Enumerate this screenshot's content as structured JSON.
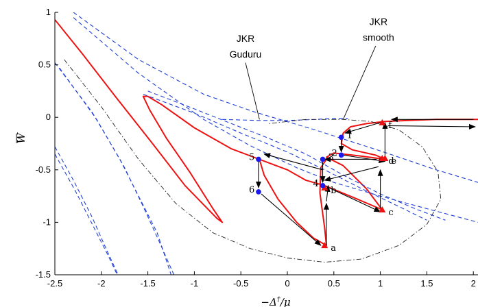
{
  "chart_data": {
    "type": "line",
    "title": "",
    "xlabel": "−Δ",
    "xlabel_sup": "†",
    "xlabel_tail": "/μ",
    "ylabel": "W",
    "xlim": [
      -2.5,
      2.05
    ],
    "ylim": [
      -1.5,
      1
    ],
    "x_ticks": [
      -2.5,
      -2,
      -1.5,
      -1,
      -0.5,
      0,
      0.5,
      1,
      1.5,
      2
    ],
    "x_tick_labels": [
      "-2.5",
      "-2",
      "-1.5",
      "-1",
      "-0.5",
      "0",
      "0.5",
      "1",
      "1.5",
      "2"
    ],
    "y_ticks": [
      1,
      0.5,
      0,
      -0.5,
      -1,
      -1.5
    ],
    "y_tick_labels": [
      "1",
      "0.5",
      "0",
      "-0.5",
      "-1",
      "-1.5"
    ],
    "grid": false,
    "colors": {
      "main_curve": "#ee1111",
      "dashed_curves": "#1f3fd6",
      "envelope": "#222222",
      "points": "#1a1aee",
      "markers": "#ee1111",
      "arrows": "#000000"
    },
    "series": [
      {
        "style": "solid-red",
        "points": [
          [
            -2.5,
            0.93
          ],
          [
            -2.2,
            0.6
          ],
          [
            -1.85,
            0.2
          ],
          [
            -1.45,
            -0.25
          ],
          [
            -1.1,
            -0.65
          ],
          [
            -0.76,
            -0.96
          ],
          [
            -0.7,
            -1.0
          ],
          [
            -0.8,
            -0.87
          ],
          [
            -1.05,
            -0.52
          ],
          [
            -1.3,
            -0.2
          ],
          [
            -1.48,
            0.07
          ],
          [
            -1.55,
            0.2
          ],
          [
            -1.5,
            0.2
          ],
          [
            -1.35,
            0.12
          ],
          [
            -1.0,
            -0.1
          ],
          [
            -0.6,
            -0.3
          ],
          [
            -0.3,
            -0.4
          ],
          [
            0.0,
            -0.5
          ],
          [
            0.2,
            -0.6
          ],
          [
            0.4,
            -0.65
          ],
          [
            0.7,
            -0.76
          ],
          [
            1.02,
            -0.88
          ],
          [
            0.85,
            -0.68
          ],
          [
            0.6,
            -0.46
          ],
          [
            0.42,
            -0.38
          ],
          [
            0.5,
            -0.34
          ],
          [
            0.6,
            -0.35
          ],
          [
            0.8,
            -0.37
          ],
          [
            1.05,
            -0.4
          ],
          [
            0.95,
            -0.36
          ],
          [
            0.7,
            -0.31
          ],
          [
            0.58,
            -0.25
          ],
          [
            0.6,
            -0.15
          ],
          [
            0.68,
            -0.09
          ],
          [
            0.85,
            -0.06
          ],
          [
            1.05,
            -0.04
          ],
          [
            1.3,
            -0.03
          ],
          [
            1.6,
            -0.02
          ],
          [
            2.05,
            -0.02
          ]
        ]
      },
      {
        "style": "solid-red",
        "points": [
          [
            -0.3,
            -0.4
          ],
          [
            -0.25,
            -0.55
          ],
          [
            -0.1,
            -0.78
          ],
          [
            0.1,
            -1.0
          ],
          [
            0.28,
            -1.15
          ],
          [
            0.42,
            -1.22
          ],
          [
            0.4,
            -1.05
          ],
          [
            0.35,
            -0.72
          ],
          [
            0.36,
            -0.48
          ],
          [
            0.42,
            -0.4
          ]
        ]
      },
      {
        "style": "dashed-blue",
        "points": [
          [
            -2.3,
            1.0
          ],
          [
            -1.6,
            0.55
          ],
          [
            -0.9,
            0.22
          ],
          [
            -0.35,
            0.05
          ],
          [
            0.3,
            -0.12
          ],
          [
            1.0,
            -0.32
          ],
          [
            1.6,
            -0.5
          ],
          [
            2.05,
            -0.62
          ]
        ]
      },
      {
        "style": "dashed-blue",
        "points": [
          [
            -2.3,
            0.95
          ],
          [
            -1.6,
            0.42
          ],
          [
            -0.9,
            -0.02
          ],
          [
            -0.4,
            -0.27
          ],
          [
            0.1,
            -0.48
          ],
          [
            0.5,
            -0.62
          ],
          [
            1.0,
            -0.75
          ],
          [
            1.5,
            -0.87
          ],
          [
            2.05,
            -1.0
          ]
        ]
      },
      {
        "style": "dashed-blue",
        "points": [
          [
            -1.5,
            0.25
          ],
          [
            -1.0,
            0.08
          ],
          [
            -0.6,
            -0.06
          ],
          [
            -0.2,
            -0.2
          ],
          [
            0.2,
            -0.35
          ],
          [
            0.6,
            -0.55
          ],
          [
            1.0,
            -0.73
          ],
          [
            1.4,
            -0.88
          ],
          [
            1.7,
            -0.98
          ]
        ]
      },
      {
        "style": "dashed-blue",
        "points": [
          [
            -1.55,
            0.22
          ],
          [
            -1.0,
            0.04
          ],
          [
            -0.5,
            -0.15
          ],
          [
            0.0,
            -0.33
          ],
          [
            0.4,
            -0.5
          ],
          [
            0.8,
            -0.68
          ],
          [
            1.2,
            -0.85
          ],
          [
            1.5,
            -0.98
          ]
        ]
      },
      {
        "style": "dashed-blue",
        "points": [
          [
            -0.7,
            -0.02
          ],
          [
            -0.3,
            -0.03
          ],
          [
            0.0,
            -0.03
          ],
          [
            0.3,
            -0.02
          ],
          [
            0.5,
            -0.01
          ],
          [
            0.65,
            -0.01
          ]
        ]
      },
      {
        "style": "dashed-blue",
        "points": [
          [
            -2.5,
            0.52
          ],
          [
            -2.1,
            0.05
          ],
          [
            -1.8,
            -0.4
          ],
          [
            -1.6,
            -0.75
          ],
          [
            -1.4,
            -1.1
          ],
          [
            -1.25,
            -1.5
          ]
        ]
      },
      {
        "style": "dashed-blue",
        "points": [
          [
            -2.45,
            0.47
          ],
          [
            -2.05,
            -0.02
          ],
          [
            -1.75,
            -0.48
          ],
          [
            -1.55,
            -0.85
          ],
          [
            -1.38,
            -1.18
          ],
          [
            -1.22,
            -1.5
          ]
        ]
      },
      {
        "style": "dashed-blue",
        "points": [
          [
            -2.5,
            -0.28
          ],
          [
            -2.3,
            -0.6
          ],
          [
            -2.1,
            -0.95
          ],
          [
            -1.95,
            -1.25
          ],
          [
            -1.82,
            -1.5
          ]
        ]
      },
      {
        "style": "dashed-blue",
        "points": [
          [
            -2.5,
            -0.35
          ],
          [
            -2.28,
            -0.7
          ],
          [
            -2.08,
            -1.05
          ],
          [
            -1.92,
            -1.33
          ],
          [
            -1.83,
            -1.5
          ]
        ]
      },
      {
        "style": "dashdot-black",
        "points": [
          [
            -2.4,
            0.55
          ],
          [
            -2.0,
            0.1
          ],
          [
            -1.6,
            -0.4
          ],
          [
            -1.2,
            -0.82
          ],
          [
            -0.8,
            -1.1
          ],
          [
            -0.4,
            -1.25
          ],
          [
            0.0,
            -1.34
          ],
          [
            0.4,
            -1.38
          ],
          [
            0.8,
            -1.35
          ],
          [
            1.2,
            -1.22
          ],
          [
            1.5,
            -1.02
          ],
          [
            1.65,
            -0.78
          ],
          [
            1.62,
            -0.52
          ],
          [
            1.45,
            -0.28
          ],
          [
            1.2,
            -0.12
          ],
          [
            0.9,
            -0.04
          ],
          [
            0.6,
            -0.02
          ],
          [
            0.2,
            -0.02
          ],
          [
            -0.2,
            -0.06
          ]
        ]
      }
    ],
    "labeled_points": [
      {
        "label": "1",
        "x": 0.58,
        "y": -0.19,
        "label_side": "right"
      },
      {
        "label": "2",
        "x": 0.58,
        "y": -0.36,
        "label_side": "left"
      },
      {
        "label": "3",
        "x": 0.38,
        "y": -0.4,
        "label_side": "right"
      },
      {
        "label": "4",
        "x": 0.38,
        "y": -0.65,
        "label_side": "left"
      },
      {
        "label": "5",
        "x": -0.31,
        "y": -0.4,
        "label_side": "left"
      },
      {
        "label": "6",
        "x": -0.31,
        "y": -0.71,
        "label_side": "left"
      }
    ],
    "triangle_markers": [
      {
        "label": "a",
        "x": 0.4,
        "y": -1.22
      },
      {
        "label": "b",
        "x": 0.4,
        "y": -0.67
      },
      {
        "label": "c",
        "x": 1.02,
        "y": -0.88
      },
      {
        "label": "d",
        "x": 1.02,
        "y": -0.39
      },
      {
        "label": "e",
        "x": 1.05,
        "y": -0.39
      },
      {
        "label": "f",
        "x": 1.02,
        "y": -0.05
      }
    ],
    "arrows": [
      [
        1.08,
        -0.08,
        2.02,
        -0.09
      ],
      [
        2.0,
        -0.02,
        1.12,
        -0.02
      ],
      [
        1.0,
        -0.05,
        0.62,
        -0.15
      ],
      [
        0.58,
        -0.2,
        0.58,
        -0.33
      ],
      [
        0.6,
        -0.36,
        1.05,
        -0.42
      ],
      [
        1.05,
        -0.38,
        1.05,
        -0.05
      ],
      [
        0.96,
        -0.4,
        0.4,
        -0.4
      ],
      [
        0.38,
        -0.4,
        0.38,
        -0.62
      ],
      [
        0.42,
        -0.66,
        1.0,
        -0.9
      ],
      [
        1.0,
        -0.86,
        1.0,
        -0.5
      ],
      [
        0.98,
        -0.47,
        0.4,
        -0.6
      ],
      [
        0.42,
        -0.8,
        0.44,
        -0.65
      ],
      [
        0.42,
        -1.22,
        0.42,
        -0.82
      ],
      [
        0.38,
        -0.5,
        -0.25,
        -0.35
      ],
      [
        -0.31,
        -0.42,
        -0.31,
        -0.67
      ],
      [
        -0.28,
        -0.73,
        0.36,
        -1.22
      ]
    ],
    "annotations": [
      {
        "text": "JKR",
        "x": -0.45,
        "y": 0.72
      },
      {
        "text": "Guduru",
        "x": -0.45,
        "y": 0.57
      },
      {
        "text": "JKR",
        "x": 0.98,
        "y": 0.88
      },
      {
        "text": "smooth",
        "x": 0.98,
        "y": 0.73
      }
    ],
    "annotation_lines": [
      [
        -0.45,
        0.52,
        -0.3,
        -0.02
      ],
      [
        0.95,
        0.68,
        0.6,
        -0.02
      ]
    ]
  }
}
